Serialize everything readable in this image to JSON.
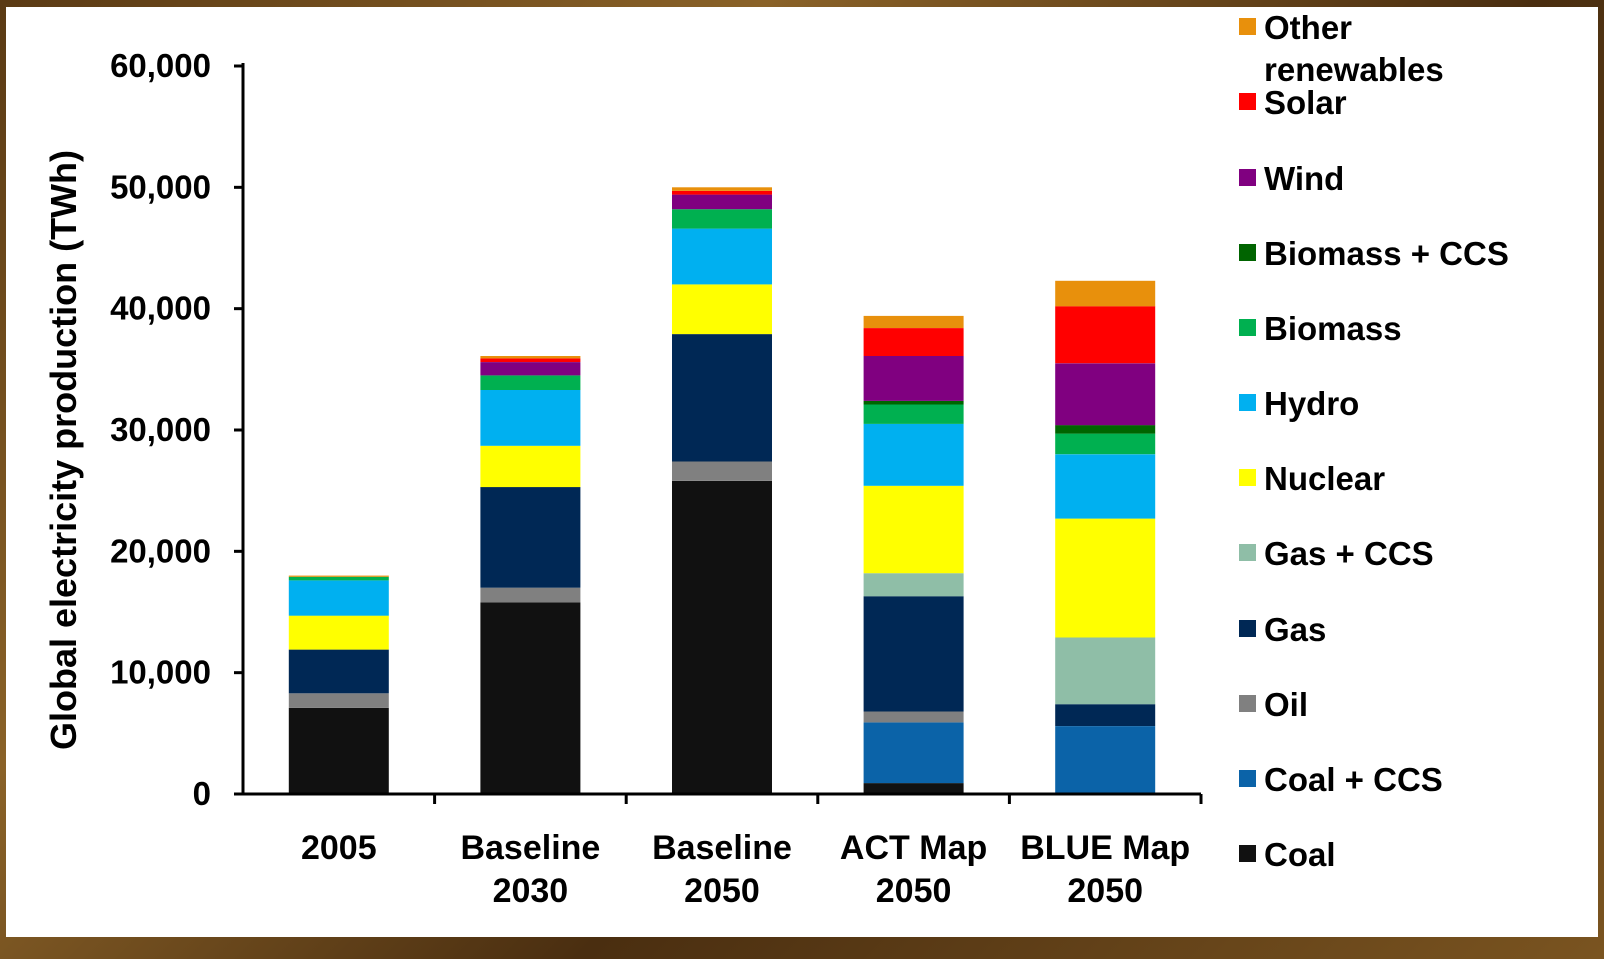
{
  "header": {
    "caption_fragment": ""
  },
  "chart_data": {
    "type": "bar",
    "stacked": true,
    "title": "",
    "xlabel": "",
    "ylabel": "Global electricity production (TWh)",
    "ylim": [
      0,
      60000
    ],
    "yticks": [
      "0",
      "10,000",
      "20,000",
      "30,000",
      "40,000",
      "50,000",
      "60,000"
    ],
    "ytick_values": [
      0,
      10000,
      20000,
      30000,
      40000,
      50000,
      60000
    ],
    "categories": [
      [
        "2005"
      ],
      [
        "Baseline",
        "2030"
      ],
      [
        "Baseline",
        "2050"
      ],
      [
        "ACT Map",
        "2050"
      ],
      [
        "BLUE Map",
        "2050"
      ]
    ],
    "series": [
      {
        "name": "Coal",
        "color": "#111111",
        "values": [
          7100,
          15800,
          25800,
          900,
          0
        ]
      },
      {
        "name": "Coal + CCS",
        "color": "#0b63a8",
        "values": [
          0,
          0,
          0,
          5000,
          5600
        ]
      },
      {
        "name": "Oil",
        "color": "#808080",
        "values": [
          1200,
          1200,
          1600,
          900,
          0
        ]
      },
      {
        "name": "Gas",
        "color": "#002855",
        "values": [
          3600,
          8300,
          10500,
          9500,
          1800
        ]
      },
      {
        "name": "Gas + CCS",
        "color": "#8fbea7",
        "values": [
          0,
          0,
          0,
          1900,
          5500
        ]
      },
      {
        "name": "Nuclear",
        "color": "#ffff00",
        "values": [
          2800,
          3400,
          4100,
          7200,
          9800
        ]
      },
      {
        "name": "Hydro",
        "color": "#00b0f0",
        "values": [
          2900,
          4600,
          4600,
          5100,
          5300
        ]
      },
      {
        "name": "Biomass",
        "color": "#00b050",
        "values": [
          300,
          1200,
          1600,
          1600,
          1700
        ]
      },
      {
        "name": "Biomass + CCS",
        "color": "#006400",
        "values": [
          0,
          0,
          0,
          300,
          700
        ]
      },
      {
        "name": "Wind",
        "color": "#800080",
        "values": [
          0,
          1100,
          1200,
          3700,
          5100
        ]
      },
      {
        "name": "Solar",
        "color": "#ff0000",
        "values": [
          0,
          300,
          300,
          2300,
          4700
        ]
      },
      {
        "name": "Other renewables",
        "color": "#e8900c",
        "values": [
          100,
          200,
          300,
          1000,
          2100
        ]
      }
    ],
    "legend": {
      "placement": "right",
      "order": [
        "Other renewables",
        "Solar",
        "Wind",
        "Biomass + CCS",
        "Biomass",
        "Hydro",
        "Nuclear",
        "Gas + CCS",
        "Gas",
        "Oil",
        "Coal + CCS",
        "Coal"
      ],
      "display_lines": {
        "Other renewables": [
          "Other",
          "renewables"
        ]
      }
    },
    "grid": false
  }
}
